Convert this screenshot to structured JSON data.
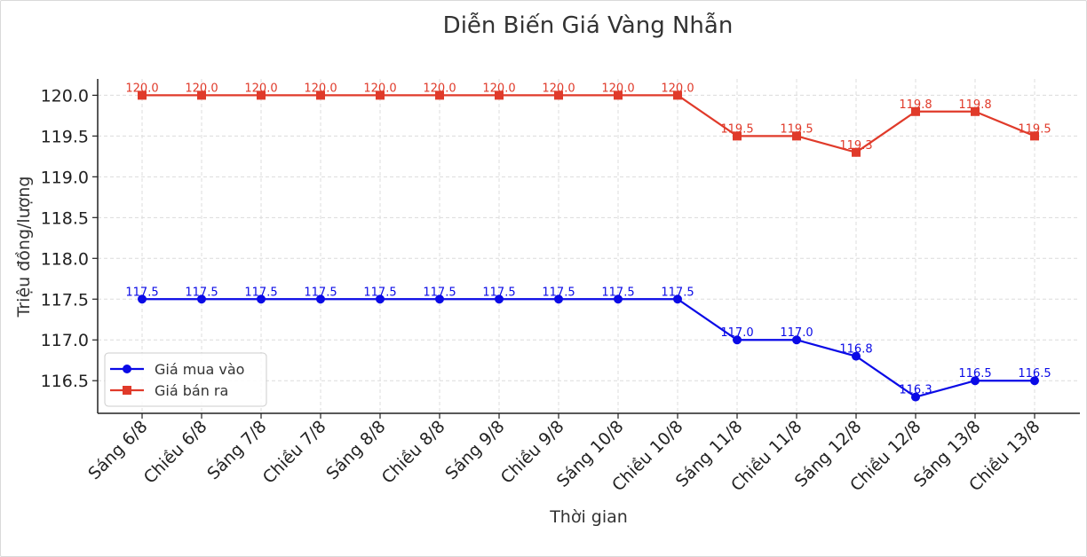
{
  "chart_data": {
    "type": "line",
    "title": "Diễn Biến Giá Vàng Nhẫn",
    "xlabel": "Thời gian",
    "ylabel": "Triệu đồng/lượng",
    "ylim": [
      116.1,
      120.2
    ],
    "yticks": [
      "116.5",
      "117.0",
      "117.5",
      "118.0",
      "118.5",
      "119.0",
      "119.5",
      "120.0"
    ],
    "grid": true,
    "legend_position": "lower-left",
    "categories": [
      "Sáng 6/8",
      "Chiều 6/8",
      "Sáng 7/8",
      "Chiều 7/8",
      "Sáng 8/8",
      "Chiều 8/8",
      "Sáng 9/8",
      "Chiều 9/8",
      "Sáng 10/8",
      "Chiều 10/8",
      "Sáng 11/8",
      "Chiều 11/8",
      "Sáng 12/8",
      "Chiều 12/8",
      "Sáng 13/8",
      "Chiều 13/8"
    ],
    "series": [
      {
        "name": "Giá mua vào",
        "color": "#0a0ae6",
        "marker": "circle",
        "values": [
          117.5,
          117.5,
          117.5,
          117.5,
          117.5,
          117.5,
          117.5,
          117.5,
          117.5,
          117.5,
          117.0,
          117.0,
          116.8,
          116.3,
          116.5,
          116.5
        ],
        "labels": [
          "117.5",
          "117.5",
          "117.5",
          "117.5",
          "117.5",
          "117.5",
          "117.5",
          "117.5",
          "117.5",
          "117.5",
          "117.0",
          "117.0",
          "116.8",
          "116.3",
          "116.5",
          "116.5"
        ]
      },
      {
        "name": "Giá bán ra",
        "color": "#e03a2a",
        "marker": "square",
        "values": [
          120.0,
          120.0,
          120.0,
          120.0,
          120.0,
          120.0,
          120.0,
          120.0,
          120.0,
          120.0,
          119.5,
          119.5,
          119.3,
          119.8,
          119.8,
          119.5
        ],
        "labels": [
          "120.0",
          "120.0",
          "120.0",
          "120.0",
          "120.0",
          "120.0",
          "120.0",
          "120.0",
          "120.0",
          "120.0",
          "119.5",
          "119.5",
          "119.3",
          "119.8",
          "119.8",
          "119.5"
        ]
      }
    ]
  }
}
